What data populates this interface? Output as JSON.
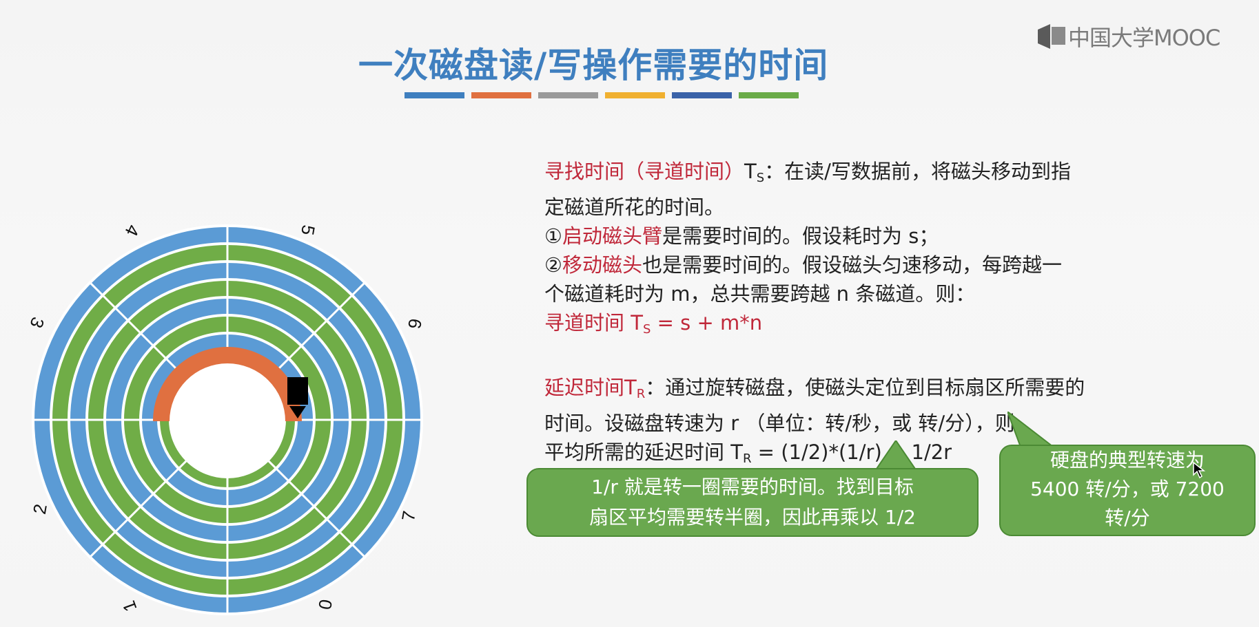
{
  "logo": {
    "text": "中国大学MOOC"
  },
  "title": "一次磁盘读/写操作需要的时间",
  "accent_bars": [
    "#3f7fbf",
    "#e07040",
    "#9a9a9a",
    "#f0b030",
    "#3a62a8",
    "#6aab48"
  ],
  "seek": {
    "heading": "寻找时间（寻道时间）",
    "symbol": "T",
    "sub": "S",
    "desc_1": "：在读/写数据前，将磁头移动到指",
    "desc_2": "定磁道所花的时间。",
    "item1_prefix": "①",
    "item1_red": "启动磁头臂",
    "item1_rest": "是需要时间的。假设耗时为 s；",
    "item2_prefix": "②",
    "item2_red": "移动磁头",
    "item2_rest": "也是需要时间的。假设磁头匀速移动，每跨越一",
    "item2_cont": "个磁道耗时为 m，总共需要跨越 n 条磁道。则：",
    "formula_label": "寻道时间 T",
    "formula_sub": "S",
    "formula_rest": " = s + m*n"
  },
  "latency": {
    "heading": "延迟时间T",
    "sub": "R",
    "desc_1": "：通过旋转磁盘，使磁头定位到目标扇区所需要的",
    "desc_2": "时间。设磁盘转速为 r （单位：转/秒，或 转/分），则",
    "formula_label": "平均所需的延迟时间 T",
    "formula_sub": "R",
    "formula_rest": " = (1/2)*(1/r) = 1/2r"
  },
  "callout_left": {
    "line1": "1/r 就是转一圈需要的时间。找到目标",
    "line2": "扇区平均需要转半圈，因此再乘以 1/2"
  },
  "callout_right": {
    "line1": "硬盘的典型转速为",
    "line2": "5400 转/分，或 7200",
    "line3": "转/分"
  },
  "disk": {
    "sector_labels": [
      "0",
      "1",
      "2",
      "3",
      "4",
      "5",
      "6",
      "7"
    ],
    "track_color_a": "#5b9bd5",
    "track_color_b": "#70ad47",
    "arc_color": "#e07040"
  }
}
